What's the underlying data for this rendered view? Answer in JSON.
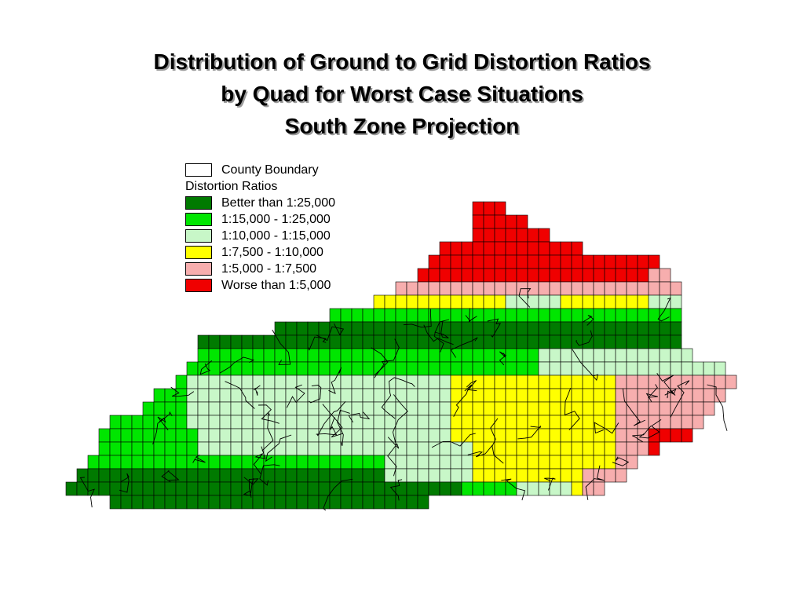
{
  "title_lines": [
    "Distribution of Ground to Grid Distortion Ratios",
    "by Quad for Worst Case Situations",
    "South Zone Projection"
  ],
  "legend": {
    "boundary_label": "County Boundary",
    "boundary_color": "#ffffff",
    "heading": "Distortion Ratios",
    "classes": [
      {
        "id": "dark",
        "label": "Better than 1:25,000",
        "color": "#007a00"
      },
      {
        "id": "green",
        "label": "1:15,000 - 1:25,000",
        "color": "#00e600"
      },
      {
        "id": "light",
        "label": "1:10,000 - 1:15,000",
        "color": "#c8f7c8"
      },
      {
        "id": "yellow",
        "label": "1:7,500 - 1:10,000",
        "color": "#ffff00"
      },
      {
        "id": "pink",
        "label": "1:5,000 - 1:7,500",
        "color": "#f7aeae"
      },
      {
        "id": "red",
        "label": "Worse than 1:5,000",
        "color": "#f00000"
      }
    ]
  }
}
